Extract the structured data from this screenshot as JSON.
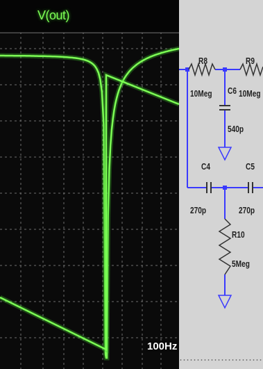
{
  "plot": {
    "title": "V(out)",
    "frequency_label": "100Hz"
  },
  "schematic": {
    "components": [
      {
        "ref": "R8",
        "value": "10Meg"
      },
      {
        "ref": "R9",
        "value": "10Meg"
      },
      {
        "ref": "C6",
        "value": "540p"
      },
      {
        "ref": "C4",
        "value": "270p"
      },
      {
        "ref": "C5",
        "value": "270p"
      },
      {
        "ref": "R10",
        "value": "5Meg"
      }
    ]
  },
  "colors": {
    "trace": "#7dff55",
    "wire": "#3a3aff",
    "component": "#333333",
    "plot_background": "#0a0a0a",
    "schematic_background": "#d4d4d4"
  }
}
